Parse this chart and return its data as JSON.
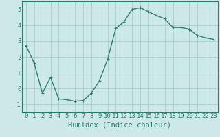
{
  "x": [
    0,
    1,
    2,
    3,
    4,
    5,
    6,
    7,
    8,
    9,
    10,
    11,
    12,
    13,
    14,
    15,
    16,
    17,
    18,
    19,
    20,
    21,
    22,
    23
  ],
  "y": [
    2.7,
    1.6,
    -0.3,
    0.7,
    -0.65,
    -0.7,
    -0.8,
    -0.75,
    -0.3,
    0.5,
    1.85,
    3.8,
    4.2,
    5.0,
    5.1,
    4.85,
    4.6,
    4.4,
    3.85,
    3.85,
    3.75,
    3.35,
    3.2,
    3.1
  ],
  "line_color": "#2e7d6e",
  "marker": "+",
  "marker_size": 3,
  "xlabel": "Humidex (Indice chaleur)",
  "xlim": [
    -0.5,
    23.5
  ],
  "ylim": [
    -1.5,
    5.5
  ],
  "xticks": [
    0,
    1,
    2,
    3,
    4,
    5,
    6,
    7,
    8,
    9,
    10,
    11,
    12,
    13,
    14,
    15,
    16,
    17,
    18,
    19,
    20,
    21,
    22,
    23
  ],
  "yticks": [
    -1,
    0,
    1,
    2,
    3,
    4,
    5
  ],
  "background_color": "#cce8e8",
  "grid_color": "#aacccc",
  "tick_label_fontsize": 6.5,
  "xlabel_fontsize": 7.5,
  "line_width": 1.0,
  "spine_color": "#2e7d6e"
}
